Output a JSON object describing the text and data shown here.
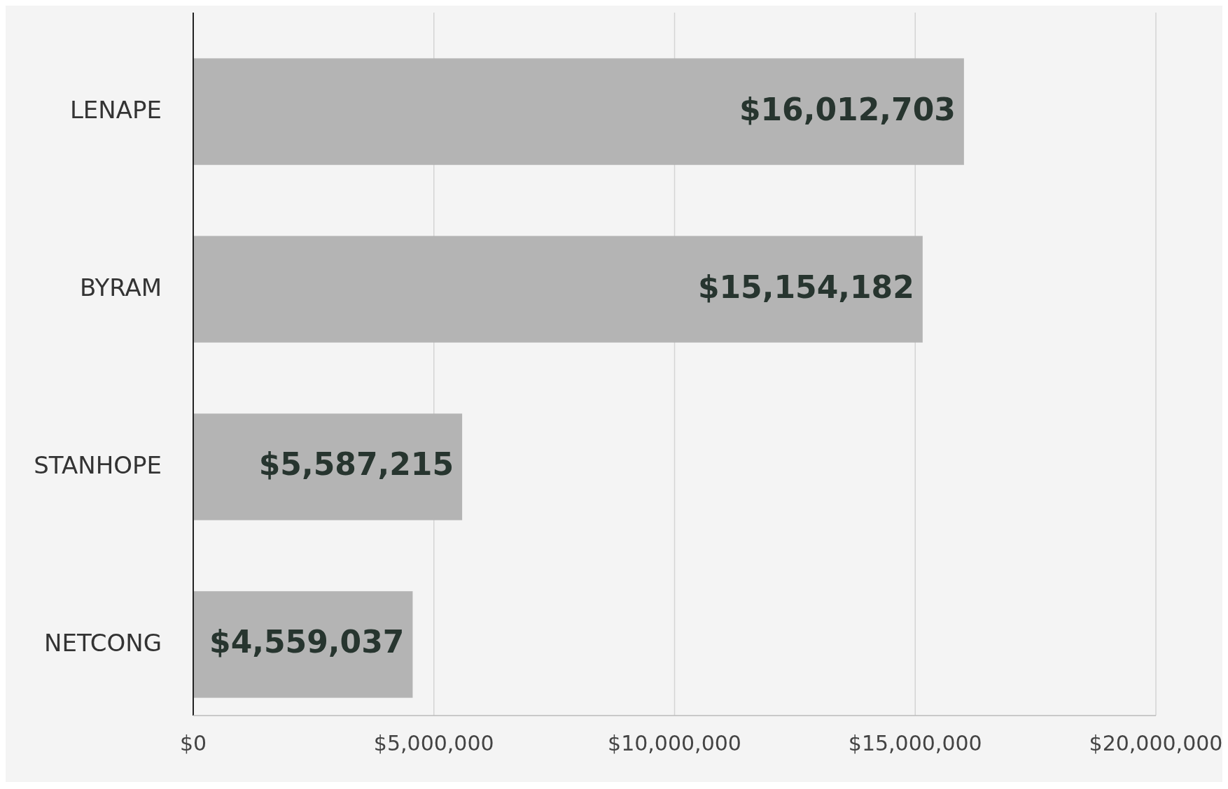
{
  "chart_data": {
    "type": "bar",
    "orientation": "horizontal",
    "categories": [
      "LENAPE",
      "BYRAM",
      "STANHOPE",
      "NETCONG"
    ],
    "values": [
      16012703,
      15154182,
      5587215,
      4559037
    ],
    "color": "#b4b4b4",
    "value_labels": [
      "$16,012,703",
      "$15,154,182",
      "$5,587,215",
      "$4,559,037"
    ],
    "xlim": [
      0,
      20000000
    ],
    "xticks": [
      {
        "value": 0,
        "label": "$0"
      },
      {
        "value": 5000000,
        "label": "$5,000,000"
      },
      {
        "value": 10000000,
        "label": "$10,000,000"
      },
      {
        "value": 15000000,
        "label": "$15,000,000"
      },
      {
        "value": 20000000,
        "label": "$20,000,000"
      }
    ],
    "grid": "x"
  }
}
